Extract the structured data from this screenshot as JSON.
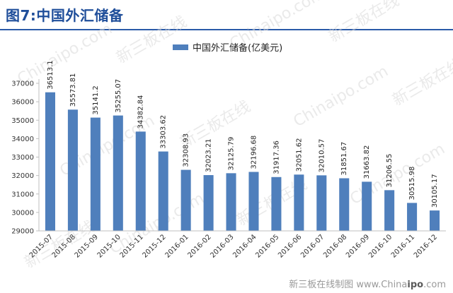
{
  "header": {
    "title": "图7:中国外汇储备"
  },
  "footer": {
    "credit_prefix": "新三板在线制图 www.China",
    "credit_bold": "ipo",
    "credit_suffix": ".com"
  },
  "watermark": [
    "Chinaipo.com",
    "新三板在线"
  ],
  "colors": {
    "bar": "#4f7fbc",
    "title": "#1f4e9a",
    "rule": "#2a5aa8"
  },
  "chart_data": {
    "type": "bar",
    "title": "",
    "xlabel": "",
    "ylabel": "",
    "legend": {
      "position": "top",
      "entries": [
        "中国外汇储备(亿美元)"
      ]
    },
    "categories": [
      "2015-07",
      "2015-08",
      "2015-09",
      "2015-10",
      "2015-11",
      "2015-12",
      "2016-01",
      "2016-02",
      "2016-03",
      "2016-04",
      "2016-05",
      "2016-06",
      "2016-07",
      "2016-08",
      "2016-09",
      "2016-10",
      "2016-11",
      "2016-12"
    ],
    "series": [
      {
        "name": "中国外汇储备(亿美元)",
        "values": [
          36513.1,
          35573.81,
          35141.2,
          35255.07,
          34382.84,
          33303.62,
          32308.93,
          32023.21,
          32125.79,
          32196.68,
          31917.36,
          32051.62,
          32010.57,
          31851.67,
          31663.82,
          31206.55,
          30515.98,
          30105.17
        ],
        "labels": [
          "36513.1",
          "35573.81",
          "35141.2",
          "35255.07",
          "34382.84",
          "33303.62",
          "32308.93",
          "32023.21",
          "32125.79",
          "32196.68",
          "31917.36",
          "32051.62",
          "32010.57",
          "31851.67",
          "31663.82",
          "31206.55",
          "30515.98",
          "30105.17"
        ]
      }
    ],
    "ylim": [
      29000,
      37000
    ],
    "yticks": [
      29000,
      30000,
      31000,
      32000,
      33000,
      34000,
      35000,
      36000,
      37000
    ],
    "grid": false
  }
}
